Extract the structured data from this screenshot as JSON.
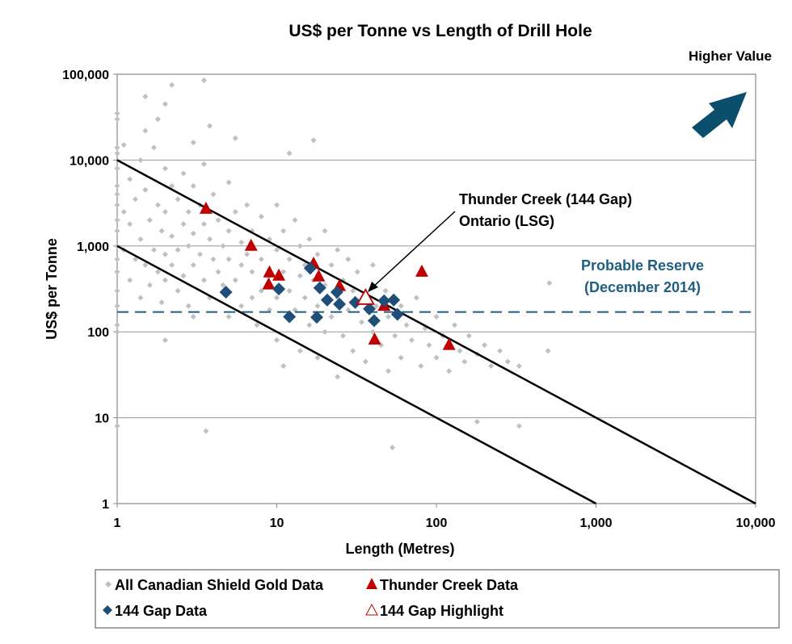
{
  "chart_data": {
    "type": "scatter",
    "title": "US$ per Tonne vs Length of Drill Hole",
    "xlabel": "Length (Metres)",
    "ylabel": "US$ per Tonne",
    "x_scale": "log",
    "y_scale": "log",
    "xlim": [
      1,
      10000
    ],
    "ylim": [
      1,
      100000
    ],
    "x_ticks": [
      1,
      10,
      100,
      1000,
      10000
    ],
    "x_tick_labels": [
      "1",
      "10",
      "100",
      "1,000",
      "10,000"
    ],
    "y_ticks": [
      1,
      10,
      100,
      1000,
      10000,
      100000
    ],
    "y_tick_labels": [
      "1",
      "10",
      "100",
      "1,000",
      "10,000",
      "100,000"
    ],
    "grid": "horizontal major",
    "legend_placement": "bottom",
    "colors": {
      "gray": "#c0c0c0",
      "red": "#c00000",
      "blue": "#1f4e79",
      "dash": "#1f5f7f",
      "arrow": "#0b4f6c"
    },
    "series": [
      {
        "name": "All Canadian Shield Gold Data",
        "marker": "small-diamond",
        "color": "#c0c0c0",
        "points": [
          [
            1,
            35000
          ],
          [
            1,
            30000
          ],
          [
            1,
            14000
          ],
          [
            1,
            12000
          ],
          [
            1,
            8000
          ],
          [
            1,
            5000
          ],
          [
            1,
            4000
          ],
          [
            1,
            3000
          ],
          [
            1,
            2000
          ],
          [
            1,
            1500
          ],
          [
            1,
            1000
          ],
          [
            1,
            700
          ],
          [
            1,
            500
          ],
          [
            1,
            300
          ],
          [
            1,
            200
          ],
          [
            1,
            120
          ],
          [
            1,
            100
          ],
          [
            1,
            8
          ],
          [
            1.1,
            15000
          ],
          [
            1.1,
            2500
          ],
          [
            1.1,
            900
          ],
          [
            1.2,
            6000
          ],
          [
            1.2,
            1800
          ],
          [
            1.2,
            400
          ],
          [
            1.3,
            3500
          ],
          [
            1.3,
            700
          ],
          [
            1.4,
            10000
          ],
          [
            1.4,
            1200
          ],
          [
            1.4,
            250
          ],
          [
            1.5,
            55000
          ],
          [
            1.5,
            22000
          ],
          [
            1.5,
            4500
          ],
          [
            1.5,
            600
          ],
          [
            1.6,
            2000
          ],
          [
            1.6,
            350
          ],
          [
            1.7,
            14000
          ],
          [
            1.7,
            900
          ],
          [
            1.8,
            30000
          ],
          [
            1.8,
            3000
          ],
          [
            1.8,
            500
          ],
          [
            1.9,
            1500
          ],
          [
            1.9,
            220
          ],
          [
            2,
            45000
          ],
          [
            2,
            8000
          ],
          [
            2,
            2500
          ],
          [
            2,
            800
          ],
          [
            2,
            400
          ],
          [
            2,
            80
          ],
          [
            2.2,
            75000
          ],
          [
            2.2,
            5000
          ],
          [
            2.2,
            1300
          ],
          [
            2.2,
            600
          ],
          [
            2.4,
            3500
          ],
          [
            2.4,
            900
          ],
          [
            2.4,
            300
          ],
          [
            2.6,
            7000
          ],
          [
            2.6,
            1800
          ],
          [
            2.6,
            450
          ],
          [
            2.8,
            2500
          ],
          [
            2.8,
            1000
          ],
          [
            2.8,
            200
          ],
          [
            3,
            16000
          ],
          [
            3,
            5000
          ],
          [
            3,
            1400
          ],
          [
            3,
            600
          ],
          [
            3,
            150
          ],
          [
            3.3,
            3000
          ],
          [
            3.3,
            800
          ],
          [
            3.5,
            85000
          ],
          [
            3.5,
            9000
          ],
          [
            3.5,
            1800
          ],
          [
            3.5,
            400
          ],
          [
            3.6,
            7
          ],
          [
            3.8,
            25000
          ],
          [
            3.8,
            1200
          ],
          [
            3.8,
            250
          ],
          [
            4,
            4000
          ],
          [
            4,
            700
          ],
          [
            4.3,
            2000
          ],
          [
            4.3,
            500
          ],
          [
            4.6,
            1000
          ],
          [
            4.6,
            350
          ],
          [
            5,
            5500
          ],
          [
            5,
            1500
          ],
          [
            5,
            700
          ],
          [
            5,
            150
          ],
          [
            5.5,
            18000
          ],
          [
            5.5,
            2500
          ],
          [
            5.5,
            400
          ],
          [
            6,
            1100
          ],
          [
            6,
            600
          ],
          [
            6,
            200
          ],
          [
            6.5,
            3000
          ],
          [
            6.5,
            800
          ],
          [
            7,
            1500
          ],
          [
            7,
            500
          ],
          [
            7,
            250
          ],
          [
            7.5,
            120
          ],
          [
            8,
            2200
          ],
          [
            8,
            700
          ],
          [
            8,
            300
          ],
          [
            9,
            1200
          ],
          [
            9,
            450
          ],
          [
            9,
            180
          ],
          [
            10,
            3000
          ],
          [
            10,
            900
          ],
          [
            10,
            250
          ],
          [
            10,
            80
          ],
          [
            11,
            1500
          ],
          [
            11,
            500
          ],
          [
            11,
            40
          ],
          [
            12,
            12000
          ],
          [
            12,
            700
          ],
          [
            12,
            300
          ],
          [
            13,
            2000
          ],
          [
            13,
            180
          ],
          [
            14,
            1000
          ],
          [
            14,
            450
          ],
          [
            14,
            60
          ],
          [
            15,
            600
          ],
          [
            15,
            250
          ],
          [
            16,
            1200
          ],
          [
            16,
            120
          ],
          [
            17,
            17000
          ],
          [
            17,
            400
          ],
          [
            18,
            800
          ],
          [
            18,
            200
          ],
          [
            18,
            50
          ],
          [
            20,
            1500
          ],
          [
            20,
            350
          ],
          [
            20,
            100
          ],
          [
            22,
            600
          ],
          [
            22,
            150
          ],
          [
            24,
            900
          ],
          [
            24,
            250
          ],
          [
            24,
            30
          ],
          [
            26,
            400
          ],
          [
            26,
            90
          ],
          [
            28,
            700
          ],
          [
            28,
            180
          ],
          [
            30,
            300
          ],
          [
            30,
            60
          ],
          [
            32,
            500
          ],
          [
            34,
            130
          ],
          [
            36,
            250
          ],
          [
            36,
            45
          ],
          [
            40,
            600
          ],
          [
            40,
            100
          ],
          [
            42,
            200
          ],
          [
            45,
            70
          ],
          [
            48,
            300
          ],
          [
            50,
            150
          ],
          [
            50,
            35
          ],
          [
            53,
            4.5
          ],
          [
            55,
            90
          ],
          [
            60,
            200
          ],
          [
            60,
            50
          ],
          [
            65,
            120
          ],
          [
            70,
            80
          ],
          [
            75,
            250
          ],
          [
            80,
            40
          ],
          [
            85,
            110
          ],
          [
            90,
            70
          ],
          [
            100,
            150
          ],
          [
            100,
            50
          ],
          [
            110,
            90
          ],
          [
            120,
            35
          ],
          [
            130,
            120
          ],
          [
            140,
            60
          ],
          [
            150,
            45
          ],
          [
            160,
            90
          ],
          [
            180,
            9
          ],
          [
            180,
            55
          ],
          [
            200,
            70
          ],
          [
            220,
            40
          ],
          [
            250,
            60
          ],
          [
            280,
            45
          ],
          [
            330,
            8
          ],
          [
            330,
            40
          ],
          [
            500,
            60
          ],
          [
            510,
            370
          ]
        ]
      },
      {
        "name": "Thunder Creek Data",
        "marker": "triangle",
        "color": "#c00000",
        "points": [
          [
            3.6,
            2700
          ],
          [
            6.9,
            1000
          ],
          [
            9,
            490
          ],
          [
            10.3,
            450
          ],
          [
            8.9,
            355
          ],
          [
            17,
            620
          ],
          [
            18.3,
            440
          ],
          [
            24.7,
            340
          ],
          [
            47,
            200
          ],
          [
            81,
            500
          ],
          [
            41,
            81
          ],
          [
            120,
            70
          ]
        ]
      },
      {
        "name": "144 Gap Data",
        "marker": "diamond",
        "color": "#1f4e79",
        "points": [
          [
            4.8,
            290
          ],
          [
            10.3,
            315
          ],
          [
            12,
            150
          ],
          [
            16.2,
            550
          ],
          [
            18.6,
            325
          ],
          [
            20.7,
            235
          ],
          [
            17.8,
            148
          ],
          [
            23.8,
            290
          ],
          [
            24.7,
            210
          ],
          [
            31,
            220
          ],
          [
            38,
            185
          ],
          [
            40.7,
            135
          ],
          [
            47,
            230
          ],
          [
            54,
            235
          ],
          [
            57,
            160
          ]
        ]
      },
      {
        "name": "144 Gap Highlight",
        "marker": "open-triangle",
        "color": "#c00000",
        "points": [
          [
            36,
            245
          ]
        ]
      }
    ],
    "reference_lines": [
      {
        "type": "line",
        "from": [
          1,
          10000
        ],
        "to": [
          10000,
          1
        ]
      },
      {
        "type": "line",
        "from": [
          1,
          1000
        ],
        "to": [
          1000,
          1
        ]
      },
      {
        "type": "dashed-horizontal",
        "y": 170
      }
    ],
    "annotations": {
      "higher_value": "Higher Value",
      "callout_line1": "Thunder Creek (144 Gap)",
      "callout_line2": "Ontario (LSG)",
      "reserve_line1": "Probable Reserve",
      "reserve_line2": "(December 2014)"
    }
  }
}
